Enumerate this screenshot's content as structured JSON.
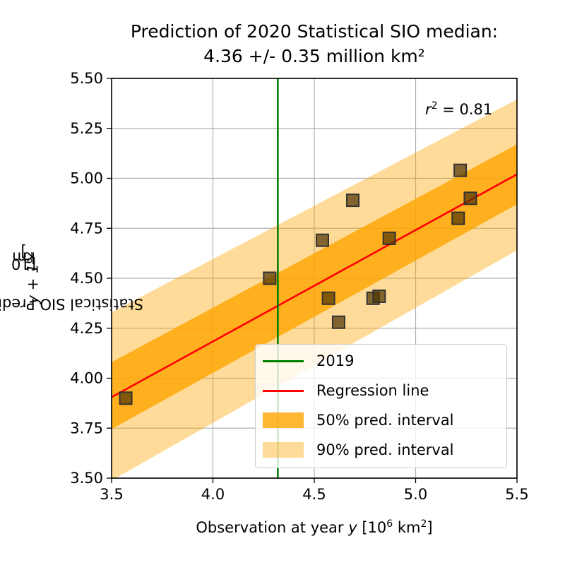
{
  "title_line1": "Prediction of 2020 Statistical SIO median:",
  "title_line2": "4.36 +/- 0.35 million km²",
  "chart_data": {
    "type": "scatter",
    "xlabel_pre": "Observation at year ",
    "xlabel_var": "y",
    "xlabel_post": " [10",
    "xlabel_sup": "6",
    "xlabel_end": " km",
    "xlabel_sup2": "2",
    "xlabel_close": "]",
    "ylabel_pre": "Statistical SIO Prediction at year ",
    "ylabel_var": "y + 1",
    "ylabel_post": " [10",
    "ylabel_sup": "6",
    "ylabel_end": " km",
    "ylabel_sup2": "2",
    "ylabel_close": "]",
    "xlim": [
      3.5,
      5.5
    ],
    "ylim": [
      3.5,
      5.5
    ],
    "xticks": [
      "3.5",
      "4.0",
      "4.5",
      "5.0",
      "5.5"
    ],
    "xtick_values": [
      3.5,
      4.0,
      4.5,
      5.0,
      5.5
    ],
    "yticks": [
      "3.50",
      "3.75",
      "4.00",
      "4.25",
      "4.50",
      "4.75",
      "5.00",
      "5.25",
      "5.50"
    ],
    "ytick_values": [
      3.5,
      3.75,
      4.0,
      4.25,
      4.5,
      4.75,
      5.0,
      5.25,
      5.5
    ],
    "grid": true,
    "points": [
      {
        "x": 3.57,
        "y": 3.9
      },
      {
        "x": 4.28,
        "y": 4.5
      },
      {
        "x": 4.54,
        "y": 4.69
      },
      {
        "x": 4.57,
        "y": 4.4
      },
      {
        "x": 4.62,
        "y": 4.28
      },
      {
        "x": 4.69,
        "y": 4.89
      },
      {
        "x": 4.79,
        "y": 4.4
      },
      {
        "x": 4.82,
        "y": 4.41
      },
      {
        "x": 4.87,
        "y": 4.7
      },
      {
        "x": 5.21,
        "y": 4.8
      },
      {
        "x": 5.22,
        "y": 5.04
      },
      {
        "x": 5.27,
        "y": 4.9
      }
    ],
    "regression": {
      "x": [
        3.5,
        5.5
      ],
      "y": [
        3.905,
        5.02
      ]
    },
    "interval_50": {
      "x": [
        3.5,
        5.5
      ],
      "lower": [
        3.745,
        4.87
      ],
      "upper": [
        4.08,
        5.17
      ]
    },
    "interval_90": {
      "x": [
        3.5,
        5.5
      ],
      "lower": [
        3.5,
        4.64
      ],
      "upper": [
        4.33,
        5.395
      ]
    },
    "interval_90_lower_start_x": 3.52,
    "vline_x": 4.32,
    "legend": {
      "placement": "lower-right",
      "items": [
        "2019",
        "Regression line",
        "50% pred. interval",
        "90% pred. interval"
      ]
    },
    "annotation": {
      "label": "r",
      "sup": "2",
      "text": " = 0.81"
    }
  },
  "colors": {
    "vline": "#008000",
    "regression": "#ff0000",
    "interval_50": "#ffa500",
    "interval_50_opacity": 0.8,
    "interval_90": "#ffa500",
    "interval_90_opacity": 0.4,
    "marker_fill": "#4d3300",
    "marker_fill_opacity": 0.7,
    "marker_edge": "#333333",
    "grid": "#b0b0b0"
  }
}
